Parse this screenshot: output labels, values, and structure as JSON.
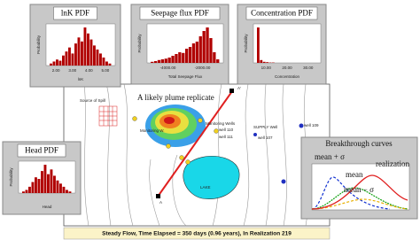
{
  "insets": [
    {
      "title": "lnK PDF",
      "y_label": "Probability",
      "x_label": "lnK",
      "x_ticks": [
        "2.00",
        "3.00",
        "4.00",
        "5.00"
      ],
      "bars": [
        5,
        10,
        15,
        12,
        25,
        35,
        45,
        30,
        55,
        70,
        60,
        95,
        80,
        65,
        50,
        40,
        30,
        20,
        10,
        5
      ]
    },
    {
      "title": "Seepage flux PDF",
      "y_label": "Probability",
      "x_label": "Total Seepage Flux",
      "x_ticks": [
        "-4000.00",
        "-2000.00"
      ],
      "bars": [
        3,
        5,
        8,
        10,
        12,
        15,
        20,
        25,
        30,
        28,
        40,
        45,
        55,
        60,
        75,
        90,
        100,
        70,
        30,
        10
      ]
    },
    {
      "title": "Concentration PDF",
      "y_label": "Probability",
      "x_label": "Concentration",
      "x_ticks": [
        "10.00",
        "20.00",
        "30.00"
      ],
      "bars": [
        100,
        8,
        3,
        2,
        1,
        1,
        0,
        0,
        0,
        0,
        0,
        0,
        0,
        0,
        0,
        0,
        0,
        0,
        0,
        0
      ]
    },
    {
      "title": "Head PDF",
      "y_label": "Probability",
      "x_label": "Head",
      "x_ticks": [],
      "bars": [
        5,
        10,
        20,
        35,
        50,
        45,
        70,
        90,
        60,
        75,
        55,
        40,
        30,
        20,
        10,
        5
      ]
    }
  ],
  "map": {
    "source": "Source of Spill",
    "plume": "A likely plume replicate",
    "section_start": "A",
    "section_end": "A'",
    "monitoring_wells": "Monitoring Wells",
    "monitoring_w": "Monitoring W.",
    "supply_well": "SUPPLY Well",
    "lake": "LAKE",
    "wells": [
      "well 110",
      "well 111",
      "well 107",
      "well 109"
    ]
  },
  "breakthrough": {
    "title": "Breakthrough curves",
    "mean_plus": "mean + σ",
    "realization": "realization",
    "mean": "mean",
    "mean_minus": "mean − σ"
  },
  "status": "Steady Flow, Time Elapsed = 350 days (0.96 years), In Realization 219"
}
